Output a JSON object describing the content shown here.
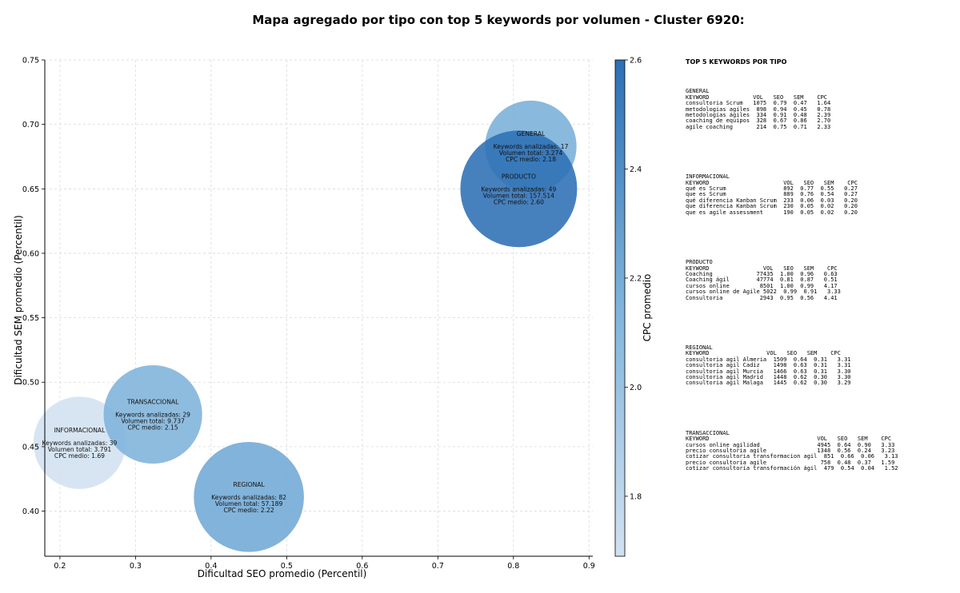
{
  "chart_data": {
    "type": "scatter",
    "title": "Mapa agregado por tipo con top 5 keywords por volumen - Cluster 6920:",
    "xlabel": "Dificultad SEO promedio (Percentil)",
    "ylabel": "Dificultad SEM promedio (Percentil)",
    "xlim": [
      0.18,
      0.905
    ],
    "ylim": [
      0.365,
      0.75
    ],
    "xticks": [
      "0.2",
      "0.3",
      "0.4",
      "0.5",
      "0.6",
      "0.7",
      "0.8",
      "0.9"
    ],
    "yticks": [
      "0.40",
      "0.45",
      "0.50",
      "0.55",
      "0.60",
      "0.65",
      "0.70",
      "0.75"
    ],
    "grid": true,
    "colorbar": {
      "label": "CPC promedio",
      "range": [
        1.69,
        2.6
      ],
      "ticks": [
        "1.8",
        "2.0",
        "2.2",
        "2.4",
        "2.6"
      ],
      "colors": [
        "#d1e1f1",
        "#2c6fb5"
      ]
    },
    "points": [
      {
        "type": "GENERAL",
        "x": 0.823,
        "y": 0.683,
        "cpc": 2.18,
        "volume": 3274,
        "line_keywords": "Keywords analizadas: 17",
        "line_volume": "Volumen total: 3.274",
        "line_cpc": "CPC medio: 2.18"
      },
      {
        "type": "PRODUCTO",
        "x": 0.807,
        "y": 0.65,
        "cpc": 2.6,
        "volume": 157514,
        "line_keywords": "Keywords analizadas: 49",
        "line_volume": "Volumen total: 157.514",
        "line_cpc": "CPC medio: 2.60"
      },
      {
        "type": "INFORMACIONAL",
        "x": 0.226,
        "y": 0.453,
        "cpc": 1.69,
        "volume": 3791,
        "line_keywords": "Keywords analizadas: 39",
        "line_volume": "Volumen total: 3.791",
        "line_cpc": "CPC medio: 1.69"
      },
      {
        "type": "TRANSACCIONAL",
        "x": 0.323,
        "y": 0.475,
        "cpc": 2.15,
        "volume": 9737,
        "line_keywords": "Keywords analizadas: 29",
        "line_volume": "Volumen total: 9.737",
        "line_cpc": "CPC medio: 2.15"
      },
      {
        "type": "REGIONAL",
        "x": 0.45,
        "y": 0.411,
        "cpc": 2.22,
        "volume": 57189,
        "line_keywords": "Keywords analizadas: 82",
        "line_volume": "Volumen total: 57.189",
        "line_cpc": "CPC medio: 2.22"
      }
    ]
  },
  "panel": {
    "heading": "TOP 5 KEYWORDS POR TIPO",
    "groups": [
      {
        "name": "GENERAL",
        "header": "KEYWORD             VOL   SEO   SEM    CPC",
        "rows": [
          "consultoria Scrum   1075  0.79  0.47   1.64",
          "metodologias agiles  898  0.94  0.45   0.78",
          "metodologías ágiles  334  0.91  0.48   2.39",
          "coaching de equipos  328  0.67  0.86   2.70",
          "agile coaching       214  0.75  0.71   2.33"
        ]
      },
      {
        "name": "INFORMACIONAL",
        "header": "KEYWORD                      VOL   SEO   SEM    CPC",
        "rows": [
          "qué es Scrum                 892  0.77  0.55   0.27",
          "que es Scrum                 889  0.76  0.54   0.27",
          "qué diferencia Kanban Scrum  233  0.06  0.03   0.20",
          "que diferencia Kanban Scrum  230  0.05  0.02   0.20",
          "que es agile assessment      190  0.05  0.02   0.20"
        ]
      },
      {
        "name": "PRODUCTO",
        "header": "KEYWORD                VOL   SEO   SEM    CPC",
        "rows": [
          "Coaching             77435  1.00  0.96   0.63",
          "Coaching ágil        47774  0.81  0.87   0.51",
          "cursos online         8501  1.00  0.99   4.17",
          "cursos online de Agile 5022  0.99  0.91   3.33",
          "Consultoria           2943  0.95  0.56   4.41"
        ]
      },
      {
        "name": "REGIONAL",
        "header": "KEYWORD                 VOL   SEO   SEM    CPC",
        "rows": [
          "consultoria agil Almeria  1509  0.64  0.31   3.31",
          "consultoria agil Cadiz    1498  0.63  0.31   3.31",
          "consultoria agil Murcia   1466  0.63  0.31   3.30",
          "consultoria agil Madrid   1448  0.62  0.30   3.30",
          "consultoria agil Malaga   1445  0.62  0.30   3.29"
        ]
      },
      {
        "name": "TRANSACCIONAL",
        "header": "KEYWORD                                VOL   SEO   SEM    CPC",
        "rows": [
          "cursos online agilidad                 4945  0.64  0.90   3.33",
          "precio consultoria agile               1348  0.56  0.24   3.23",
          "cotizar consultoria transformacion agil  851  0.66  0.06   3.13",
          "precio consultoría agile                758  0.48  0.37   1.59",
          "cotizar consultoría transformación ágil  479  0.54  0.04   1.52"
        ]
      }
    ]
  }
}
